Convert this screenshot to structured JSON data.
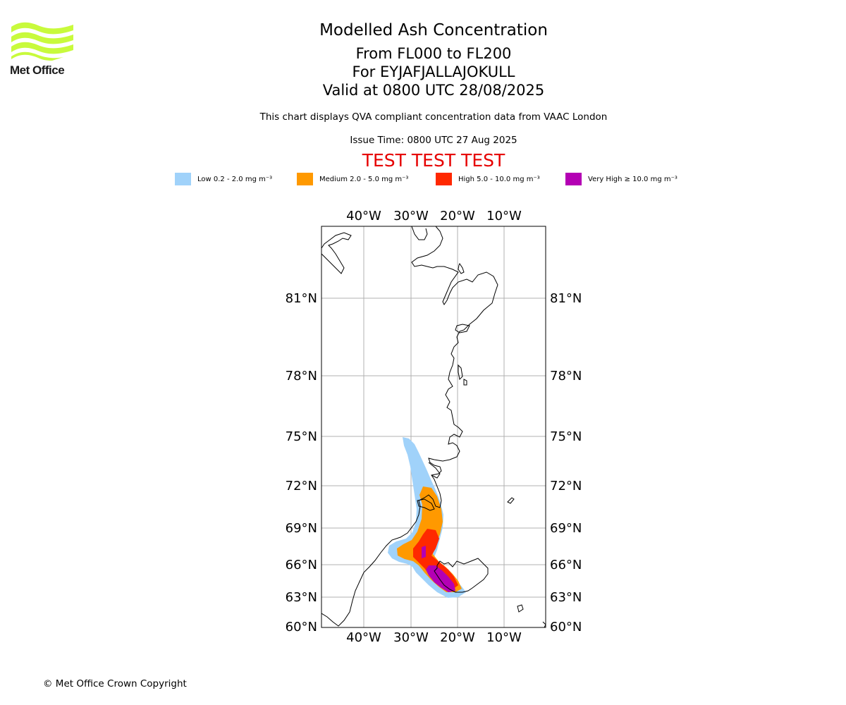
{
  "logo": {
    "text": "Met Office",
    "color": "#c8fa3c",
    "icon": "met-office-waves-icon"
  },
  "header": {
    "title": "Modelled Ash Concentration",
    "levels": "From FL000 to FL200",
    "volcano": "For EYJAFJALLAJOKULL",
    "valid": "Valid at 0800 UTC 28/08/2025",
    "description": "This chart displays QVA compliant concentration data from VAAC London",
    "issue_time": "Issue Time: 0800 UTC 27 Aug 2025",
    "test_banner": "TEST TEST TEST",
    "test_color": "#e60000"
  },
  "legend": [
    {
      "label": "Low 0.2 - 2.0 mg m⁻³",
      "color": "#a0d2fa"
    },
    {
      "label": "Medium 2.0 - 5.0 mg m⁻³",
      "color": "#ff9900"
    },
    {
      "label": "High 5.0 - 10.0 mg m⁻³",
      "color": "#ff2800"
    },
    {
      "label": "Very High ≥ 10.0 mg m⁻³",
      "color": "#b400b4"
    }
  ],
  "map": {
    "lon_labels": [
      "40°W",
      "30°W",
      "20°W",
      "10°W"
    ],
    "lat_labels": [
      "81°N",
      "78°N",
      "75°N",
      "72°N",
      "69°N",
      "66°N",
      "63°N",
      "60°N"
    ],
    "lon_values": [
      -40,
      -30,
      -20,
      -10
    ],
    "lat_values": [
      81,
      78,
      75,
      72,
      69,
      66,
      63,
      60
    ],
    "grid_color": "#b0b0b0",
    "coast_color": "#000000"
  },
  "footer": {
    "copyright": "© Met Office Crown Copyright"
  }
}
